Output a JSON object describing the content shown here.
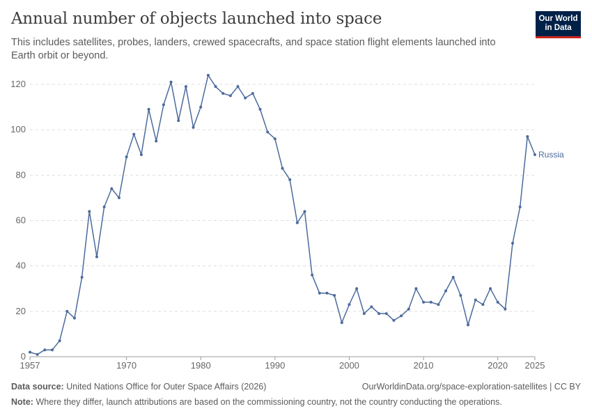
{
  "title": "Annual number of objects launched into space",
  "subtitle": "This includes satellites, probes, landers, crewed spacecrafts, and space station flight elements launched into Earth orbit or beyond.",
  "logo": {
    "line1": "Our World",
    "line2": "in Data",
    "bg_color": "#002147",
    "accent_color": "#ce261e"
  },
  "footer": {
    "source_label": "Data source:",
    "source_text": "United Nations Office for Outer Space Affairs (2026)",
    "link": "OurWorldinData.org/space-exploration-satellites | CC BY",
    "note_label": "Note:",
    "note_text": "Where they differ, launch attributions are based on the commissioning country, not the country conducting the operations."
  },
  "chart_data": {
    "type": "line",
    "x_ticks": [
      1957,
      1970,
      1980,
      1990,
      2000,
      2010,
      2020,
      2025
    ],
    "y_ticks": [
      0,
      20,
      40,
      60,
      80,
      100,
      120
    ],
    "xlim": [
      1957,
      2025
    ],
    "ylim": [
      0,
      124
    ],
    "grid": "horizontal dashed",
    "series": [
      {
        "name": "Russia",
        "color": "#4c6a9c",
        "x": [
          1957,
          1958,
          1959,
          1960,
          1961,
          1962,
          1963,
          1964,
          1965,
          1966,
          1967,
          1968,
          1969,
          1970,
          1971,
          1972,
          1973,
          1974,
          1975,
          1976,
          1977,
          1978,
          1979,
          1980,
          1981,
          1982,
          1983,
          1984,
          1985,
          1986,
          1987,
          1988,
          1989,
          1990,
          1991,
          1992,
          1993,
          1994,
          1995,
          1996,
          1997,
          1998,
          1999,
          2000,
          2001,
          2002,
          2003,
          2004,
          2005,
          2006,
          2007,
          2008,
          2009,
          2010,
          2011,
          2012,
          2013,
          2014,
          2015,
          2016,
          2017,
          2018,
          2019,
          2020,
          2021,
          2022,
          2023,
          2024,
          2025
        ],
        "values": [
          2,
          1,
          3,
          3,
          7,
          20,
          17,
          35,
          64,
          44,
          66,
          74,
          70,
          88,
          98,
          89,
          109,
          95,
          111,
          121,
          104,
          119,
          101,
          110,
          124,
          119,
          116,
          115,
          119,
          114,
          116,
          109,
          99,
          96,
          83,
          78,
          59,
          64,
          36,
          28,
          28,
          27,
          15,
          23,
          30,
          19,
          22,
          19,
          19,
          16,
          18,
          21,
          30,
          24,
          24,
          23,
          29,
          35,
          27,
          14,
          25,
          23,
          30,
          24,
          21,
          50,
          66,
          97,
          89
        ]
      }
    ]
  }
}
